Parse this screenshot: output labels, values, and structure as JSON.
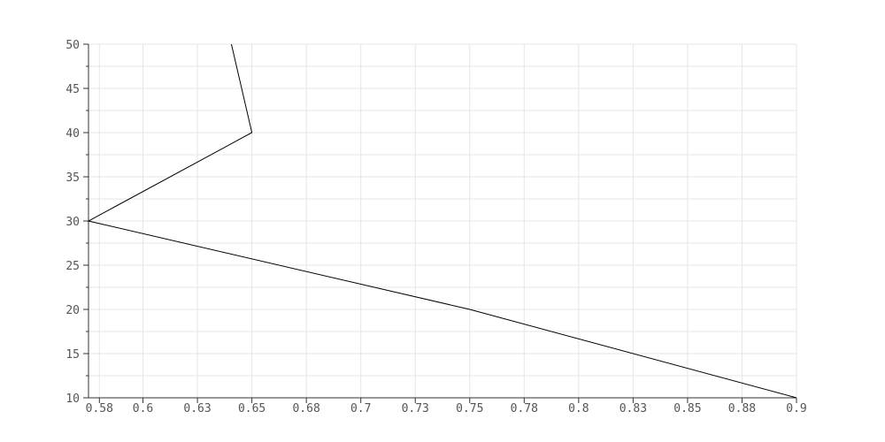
{
  "chart_data": {
    "type": "line",
    "title": "",
    "xlabel": "",
    "ylabel": "",
    "xlim": [
      0.575,
      0.9
    ],
    "ylim": [
      10,
      50
    ],
    "grid": true,
    "legend": "none",
    "x_ticks": [
      {
        "value": 0.58,
        "label": "0.58"
      },
      {
        "value": 0.6,
        "label": "0.6"
      },
      {
        "value": 0.625,
        "label": "0.63"
      },
      {
        "value": 0.65,
        "label": "0.65"
      },
      {
        "value": 0.675,
        "label": "0.68"
      },
      {
        "value": 0.7,
        "label": "0.7"
      },
      {
        "value": 0.725,
        "label": "0.73"
      },
      {
        "value": 0.75,
        "label": "0.75"
      },
      {
        "value": 0.775,
        "label": "0.78"
      },
      {
        "value": 0.8,
        "label": "0.8"
      },
      {
        "value": 0.825,
        "label": "0.83"
      },
      {
        "value": 0.85,
        "label": "0.85"
      },
      {
        "value": 0.875,
        "label": "0.88"
      },
      {
        "value": 0.9,
        "label": "0.9"
      }
    ],
    "y_ticks": [
      {
        "value": 10,
        "label": "10"
      },
      {
        "value": 15,
        "label": "15"
      },
      {
        "value": 20,
        "label": "20"
      },
      {
        "value": 25,
        "label": "25"
      },
      {
        "value": 30,
        "label": "30"
      },
      {
        "value": 35,
        "label": "35"
      },
      {
        "value": 40,
        "label": "40"
      },
      {
        "value": 45,
        "label": "45"
      },
      {
        "value": 50,
        "label": "50"
      }
    ],
    "series": [
      {
        "color": "#000000",
        "points": [
          {
            "x": 0.9,
            "y": 10
          },
          {
            "x": 0.75,
            "y": 20
          },
          {
            "x": 0.575,
            "y": 30
          },
          {
            "x": 0.65,
            "y": 40
          },
          {
            "x": 0.6406,
            "y": 50
          }
        ]
      }
    ],
    "colors": {
      "grid": "#e6e6e6",
      "axis": "#333333",
      "label": "#555555",
      "line": "#000000"
    }
  }
}
